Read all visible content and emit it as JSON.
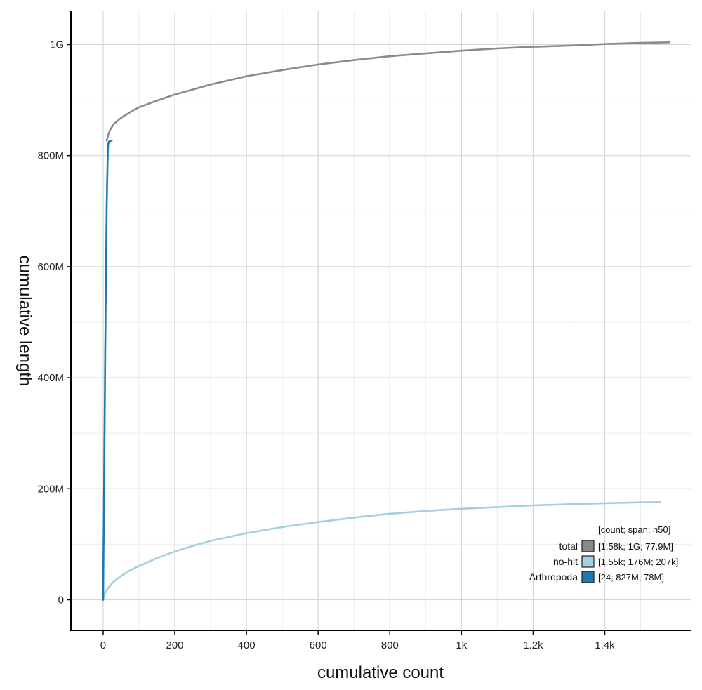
{
  "chart_data": {
    "type": "line",
    "xlabel": "cumulative count",
    "ylabel": "cumulative length",
    "xlim": [
      -90,
      1640
    ],
    "ylim": [
      -55000000,
      1060000000
    ],
    "x_ticks": [
      {
        "value": 0,
        "label": "0"
      },
      {
        "value": 200,
        "label": "200"
      },
      {
        "value": 400,
        "label": "400"
      },
      {
        "value": 600,
        "label": "600"
      },
      {
        "value": 800,
        "label": "800"
      },
      {
        "value": 1000,
        "label": "1k"
      },
      {
        "value": 1200,
        "label": "1.2k"
      },
      {
        "value": 1400,
        "label": "1.4k"
      }
    ],
    "x_minor_gridlines": [
      100,
      300,
      500,
      700,
      900,
      1100,
      1300,
      1500
    ],
    "y_ticks": [
      {
        "value": 0,
        "label": "0"
      },
      {
        "value": 200000000,
        "label": "200M"
      },
      {
        "value": 400000000,
        "label": "400M"
      },
      {
        "value": 600000000,
        "label": "600M"
      },
      {
        "value": 800000000,
        "label": "800M"
      },
      {
        "value": 1000000000,
        "label": "1G"
      }
    ],
    "y_minor_gridlines": [
      100000000,
      300000000,
      500000000,
      700000000,
      900000000
    ],
    "grid": true,
    "legend": {
      "placement": "bottom-right",
      "header": "[count; span; n50]",
      "entries": [
        {
          "name": "total",
          "stats": "[1.58k; 1G; 77.9M]",
          "color": "#8a8a8a"
        },
        {
          "name": "no-hit",
          "stats": "[1.55k; 176M; 207k]",
          "color": "#a6cee3"
        },
        {
          "name": "Arthropoda",
          "stats": "[24; 827M; 78M]",
          "color": "#1f78b4"
        }
      ]
    },
    "series": [
      {
        "name": "total",
        "color": "#8a8a8a",
        "x": [
          10,
          15,
          20,
          30,
          50,
          80,
          100,
          150,
          200,
          300,
          400,
          500,
          600,
          700,
          800,
          900,
          1000,
          1100,
          1200,
          1300,
          1400,
          1500,
          1580
        ],
        "y": [
          827000000,
          839000000,
          847000000,
          857000000,
          868000000,
          880000000,
          887000000,
          899000000,
          910000000,
          928000000,
          943000000,
          954000000,
          964000000,
          972000000,
          979000000,
          984000000,
          989000000,
          993000000,
          996000000,
          998000000,
          1001000000,
          1003000000,
          1004000000
        ]
      },
      {
        "name": "no-hit",
        "color": "#a6cee3",
        "x": [
          0,
          2,
          5,
          10,
          20,
          30,
          50,
          75,
          100,
          150,
          200,
          250,
          300,
          400,
          500,
          600,
          700,
          800,
          900,
          1000,
          1100,
          1200,
          1300,
          1400,
          1500,
          1555
        ],
        "y": [
          0,
          7000000,
          12000000,
          18000000,
          26000000,
          33000000,
          43000000,
          53000000,
          61000000,
          75000000,
          87000000,
          97000000,
          106000000,
          120000000,
          131000000,
          140000000,
          148000000,
          155000000,
          160000000,
          164000000,
          167000000,
          170000000,
          172000000,
          174000000,
          175500000,
          176000000
        ]
      },
      {
        "name": "Arthropoda",
        "color": "#1f78b4",
        "x": [
          0,
          1,
          2,
          3,
          4,
          5,
          6,
          7,
          8,
          9,
          10,
          11,
          12,
          13,
          14,
          16,
          18,
          20,
          22,
          24
        ],
        "y": [
          0,
          78000000,
          156000000,
          232000000,
          308000000,
          383000000,
          457000000,
          528000000,
          595000000,
          656000000,
          707000000,
          748000000,
          780000000,
          805000000,
          820000000,
          825000000,
          826000000,
          826500000,
          826800000,
          827000000
        ]
      }
    ]
  }
}
